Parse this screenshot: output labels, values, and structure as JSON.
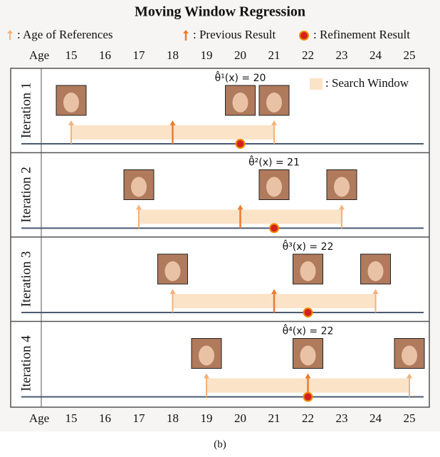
{
  "title": "Moving Window Regression",
  "legend": {
    "references": ": Age of References",
    "previous": ": Previous Result",
    "refinement": ": Refinement Result",
    "search_window": ": Search Window"
  },
  "axis": {
    "label": "Age",
    "ticks": [
      15,
      16,
      17,
      18,
      19,
      20,
      21,
      22,
      23,
      24,
      25
    ]
  },
  "iterations": [
    {
      "label": "Iteration 1",
      "estimate": "θ̂¹(x) = 20",
      "references": [
        15,
        21
      ],
      "previous": 18,
      "refinement": 20
    },
    {
      "label": "Iteration 2",
      "estimate": "θ̂²(x) = 21",
      "references": [
        17,
        23
      ],
      "previous": 20,
      "refinement": 21
    },
    {
      "label": "Iteration 3",
      "estimate": "θ̂³(x) = 22",
      "references": [
        18,
        24
      ],
      "previous": 21,
      "refinement": 22
    },
    {
      "label": "Iteration 4",
      "estimate": "θ̂⁴(x) = 22",
      "references": [
        19,
        25
      ],
      "previous": 22,
      "refinement": 22
    }
  ],
  "caption": "(b)"
}
